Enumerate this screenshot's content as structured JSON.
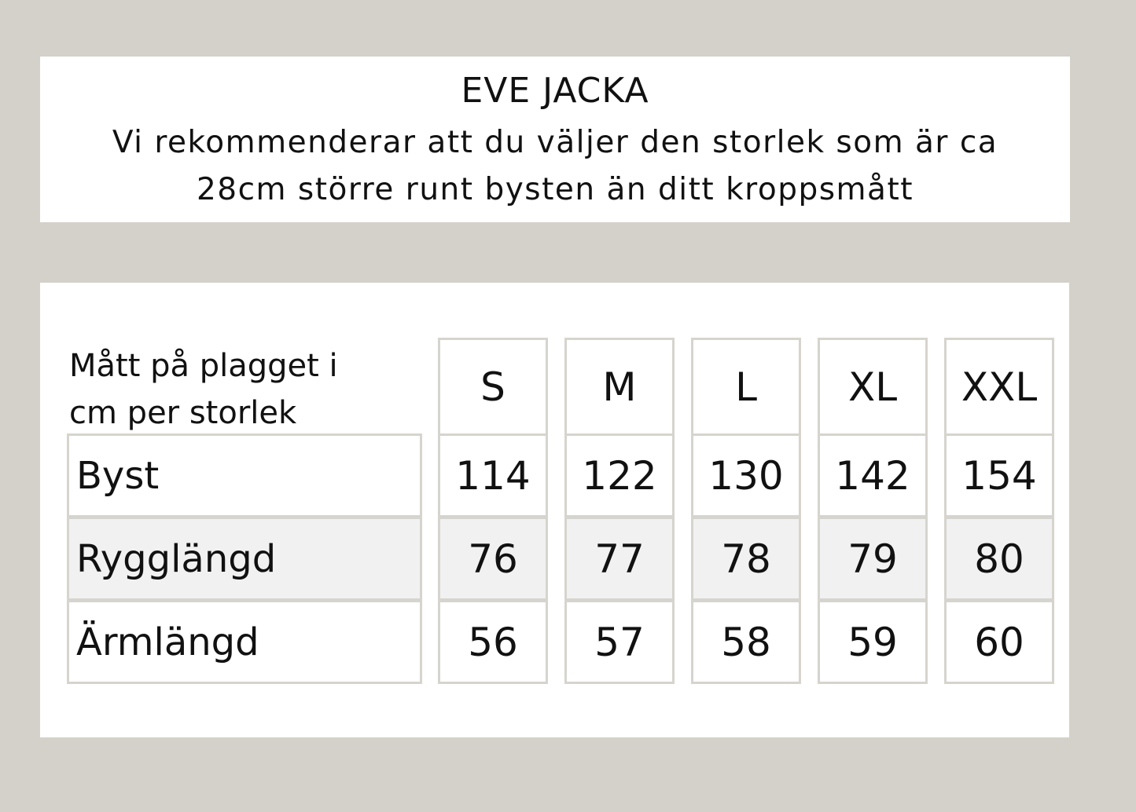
{
  "header": {
    "title": "EVE JACKA",
    "subtitle_lines": [
      "Vi rekommenderar att du väljer den storlek som är ca",
      "28cm större runt bysten än ditt kroppsmått"
    ]
  },
  "table": {
    "corner_lines": [
      "Mått på plagget i",
      "cm per storlek"
    ],
    "sizes": [
      "S",
      "M",
      "L",
      "XL",
      "XXL"
    ],
    "rows": [
      {
        "label": "Byst",
        "values": [
          "114",
          "122",
          "130",
          "142",
          "154"
        ]
      },
      {
        "label": "Rygglängd",
        "values": [
          "76",
          "77",
          "78",
          "79",
          "80"
        ]
      },
      {
        "label": "Ärmlängd",
        "values": [
          "56",
          "57",
          "58",
          "59",
          "60"
        ]
      }
    ]
  },
  "colors": {
    "background": "#d4d1ca",
    "border": "#d6d4ce",
    "shaded_row": "#f1f1f1"
  }
}
